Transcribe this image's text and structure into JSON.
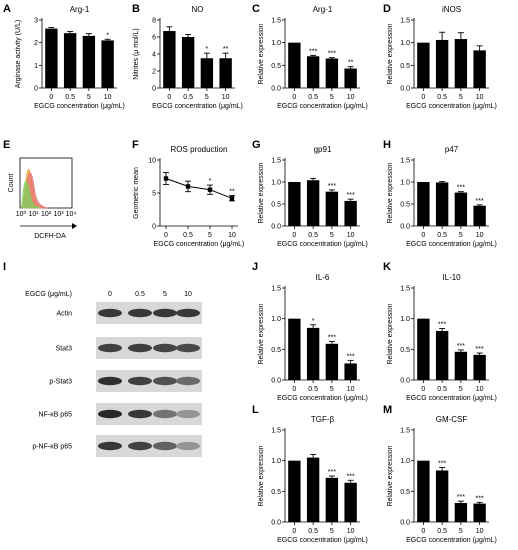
{
  "chart_data": [
    {
      "id": "A",
      "letter": "A",
      "type": "bar",
      "title": "Arg-1",
      "ylabel": "Arginase activity (U/L)",
      "xlabel": "EGCG concentration (μg/mL)",
      "categories": [
        "0",
        "0.5",
        "5",
        "10"
      ],
      "values": [
        2.62,
        2.42,
        2.3,
        2.1
      ],
      "errors": [
        0.05,
        0.07,
        0.1,
        0.05
      ],
      "ylim": [
        0,
        3
      ],
      "yticks": [
        "0",
        "1",
        "2",
        "3"
      ],
      "sig": [
        "",
        "",
        "",
        "*"
      ]
    },
    {
      "id": "B",
      "letter": "B",
      "type": "bar",
      "title": "NO",
      "ylabel": "Nitrites (μ mol/L)",
      "xlabel": "EGCG concentration (μg/mL)",
      "categories": [
        "0",
        "0.5",
        "5",
        "10"
      ],
      "values": [
        6.7,
        6.0,
        3.5,
        3.5
      ],
      "errors": [
        0.5,
        0.3,
        0.6,
        0.6
      ],
      "ylim": [
        0,
        8
      ],
      "yticks": [
        "0",
        "2",
        "4",
        "6",
        "8"
      ],
      "sig": [
        "",
        "",
        "*",
        "**"
      ]
    },
    {
      "id": "C",
      "letter": "C",
      "type": "bar",
      "title": "Arg-1",
      "ylabel": "Relative expression",
      "xlabel": "EGCG concentration (μg/mL)",
      "categories": [
        "0",
        "0.5",
        "5",
        "10"
      ],
      "values": [
        1.0,
        0.7,
        0.65,
        0.43
      ],
      "errors": [
        0.01,
        0.02,
        0.02,
        0.04
      ],
      "ylim": [
        0,
        1.5
      ],
      "yticks": [
        "0.0",
        "0.5",
        "1.0",
        "1.5"
      ],
      "sig": [
        "",
        "***",
        "***",
        "**"
      ]
    },
    {
      "id": "D",
      "letter": "D",
      "type": "bar",
      "title": "iNOS",
      "ylabel": "Relative expression",
      "xlabel": "EGCG concentration (μg/mL)",
      "categories": [
        "0",
        "0.5",
        "5",
        "10"
      ],
      "values": [
        1.0,
        1.06,
        1.08,
        0.83
      ],
      "errors": [
        0.01,
        0.17,
        0.14,
        0.1
      ],
      "ylim": [
        0,
        1.5
      ],
      "yticks": [
        "0.0",
        "0.5",
        "1.0",
        "1.5"
      ],
      "sig": [
        "",
        "",
        "",
        ""
      ]
    },
    {
      "id": "F",
      "letter": "F",
      "type": "line",
      "title": "ROS production",
      "ylabel": "Geometric mean",
      "xlabel": "EGCG concentration (μg/mL)",
      "categories": [
        "0",
        "0.5",
        "5",
        "10"
      ],
      "values": [
        7.2,
        6.0,
        5.5,
        4.2
      ],
      "errors": [
        0.9,
        0.8,
        0.7,
        0.4
      ],
      "ylim": [
        0,
        10
      ],
      "yticks": [
        "0",
        "5",
        "10"
      ],
      "sig": [
        "",
        "",
        "*",
        "**"
      ]
    },
    {
      "id": "G",
      "letter": "G",
      "type": "bar",
      "title": "gp91",
      "ylabel": "Relative expression",
      "xlabel": "EGCG concentration (μg/mL)",
      "categories": [
        "0",
        "0.5",
        "5",
        "10"
      ],
      "values": [
        1.0,
        1.04,
        0.78,
        0.57
      ],
      "errors": [
        0.01,
        0.04,
        0.04,
        0.04
      ],
      "ylim": [
        0,
        1.5
      ],
      "yticks": [
        "0.0",
        "0.5",
        "1.0",
        "1.5"
      ],
      "sig": [
        "",
        "",
        "***",
        "***"
      ]
    },
    {
      "id": "H",
      "letter": "H",
      "type": "bar",
      "title": "p47",
      "ylabel": "Relative expression",
      "xlabel": "EGCG concentration (μg/mL)",
      "categories": [
        "0",
        "0.5",
        "5",
        "10"
      ],
      "values": [
        1.0,
        0.99,
        0.76,
        0.46
      ],
      "errors": [
        0.01,
        0.02,
        0.02,
        0.02
      ],
      "ylim": [
        0,
        1.5
      ],
      "yticks": [
        "0.0",
        "0.5",
        "1.0",
        "1.5"
      ],
      "sig": [
        "",
        "",
        "***",
        "***"
      ]
    },
    {
      "id": "J",
      "letter": "J",
      "type": "bar",
      "title": "IL-6",
      "ylabel": "Relative expression",
      "xlabel": "EGCG concentration (μg/mL)",
      "categories": [
        "0",
        "0.5",
        "5",
        "10"
      ],
      "values": [
        1.0,
        0.85,
        0.59,
        0.27
      ],
      "errors": [
        0.01,
        0.05,
        0.04,
        0.05
      ],
      "ylim": [
        0,
        1.5
      ],
      "yticks": [
        "0.0",
        "0.5",
        "1.0",
        "1.5"
      ],
      "sig": [
        "",
        "*",
        "***",
        "***"
      ]
    },
    {
      "id": "K",
      "letter": "K",
      "type": "bar",
      "title": "IL-10",
      "ylabel": "Relative expression",
      "xlabel": "EGCG concentration (μg/mL)",
      "categories": [
        "0",
        "0.5",
        "5",
        "10"
      ],
      "values": [
        1.0,
        0.8,
        0.46,
        0.41
      ],
      "errors": [
        0.01,
        0.04,
        0.03,
        0.03
      ],
      "ylim": [
        0,
        1.5
      ],
      "yticks": [
        "0.0",
        "0.5",
        "1.0",
        "1.5"
      ],
      "sig": [
        "",
        "***",
        "***",
        "***"
      ]
    },
    {
      "id": "L",
      "letter": "L",
      "type": "bar",
      "title": "TGF-β",
      "ylabel": "Relative expression",
      "xlabel": "EGCG concentration (μg/mL)",
      "categories": [
        "0",
        "0.5",
        "5",
        "10"
      ],
      "values": [
        1.0,
        1.05,
        0.72,
        0.64
      ],
      "errors": [
        0.01,
        0.05,
        0.03,
        0.04
      ],
      "ylim": [
        0,
        1.5
      ],
      "yticks": [
        "0.0",
        "0.5",
        "1.0",
        "1.5"
      ],
      "sig": [
        "",
        "",
        "***",
        "***"
      ]
    },
    {
      "id": "M",
      "letter": "M",
      "type": "bar",
      "title": "GM-CSF",
      "ylabel": "Relative expression",
      "xlabel": "EGCG concentration (μg/mL)",
      "categories": [
        "0",
        "0.5",
        "5",
        "10"
      ],
      "values": [
        1.0,
        0.84,
        0.31,
        0.3
      ],
      "errors": [
        0.01,
        0.05,
        0.03,
        0.02
      ],
      "ylim": [
        0,
        1.5
      ],
      "yticks": [
        "0.0",
        "0.5",
        "1.0",
        "1.5"
      ],
      "sig": [
        "",
        "***",
        "***",
        "***"
      ]
    }
  ],
  "flow": {
    "letter": "E",
    "ylabel": "Count",
    "xlabel": "DCFH-DA",
    "xticks": [
      "10⁰",
      "10¹",
      "10²",
      "10³",
      "10⁴"
    ],
    "colors": [
      "#e8a23a",
      "#e57373",
      "#7fd35e"
    ]
  },
  "western": {
    "letter": "I",
    "header": "EGCG (μg/mL)",
    "lanes": [
      "0",
      "0.5",
      "5",
      "10"
    ],
    "rows": [
      {
        "label": "Actin",
        "intensity": [
          0.85,
          0.85,
          0.85,
          0.85
        ]
      },
      {
        "label": "Stat3",
        "intensity": [
          0.8,
          0.8,
          0.78,
          0.75
        ]
      },
      {
        "label": "p-Stat3",
        "intensity": [
          0.9,
          0.8,
          0.7,
          0.55
        ]
      },
      {
        "label": "NF-κB p65",
        "intensity": [
          0.95,
          0.85,
          0.5,
          0.3
        ]
      },
      {
        "label": "p-NF-κB p65",
        "intensity": [
          0.85,
          0.8,
          0.6,
          0.3
        ]
      }
    ]
  }
}
